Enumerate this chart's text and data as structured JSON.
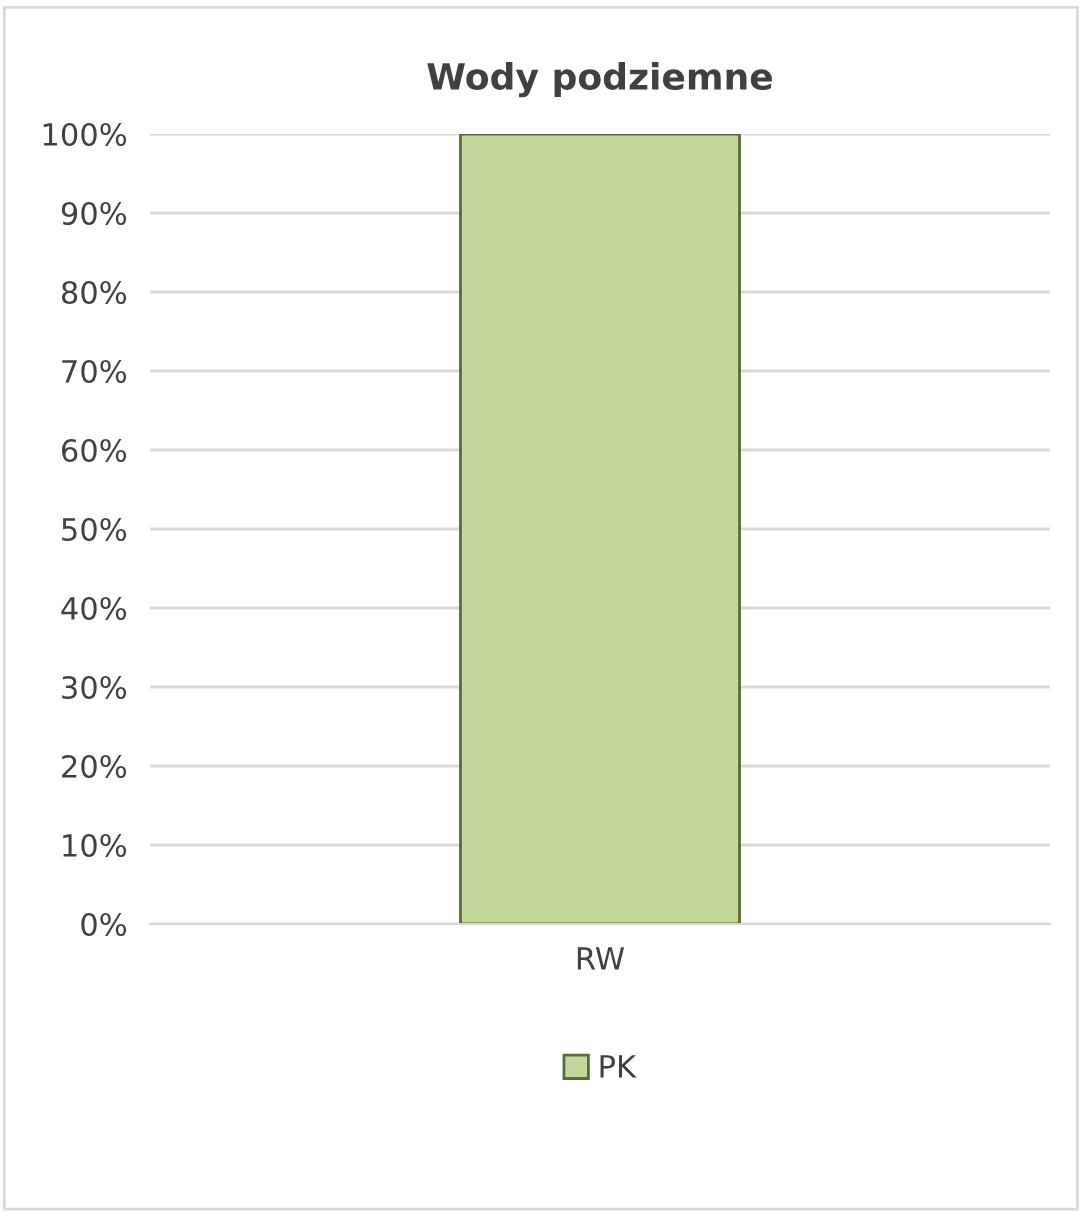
{
  "chart_data": {
    "type": "bar",
    "title": "Wody podziemne",
    "categories": [
      "RW"
    ],
    "series": [
      {
        "name": "PK",
        "color": "#c4d79b",
        "values": [
          100
        ]
      }
    ],
    "ylim": [
      0,
      100
    ],
    "yticks": [
      {
        "value": 0,
        "label": "0%"
      },
      {
        "value": 10,
        "label": "10%"
      },
      {
        "value": 20,
        "label": "20%"
      },
      {
        "value": 30,
        "label": "30%"
      },
      {
        "value": 40,
        "label": "40%"
      },
      {
        "value": 50,
        "label": "50%"
      },
      {
        "value": 60,
        "label": "60%"
      },
      {
        "value": 70,
        "label": "70%"
      },
      {
        "value": 80,
        "label": "80%"
      },
      {
        "value": 90,
        "label": "90%"
      },
      {
        "value": 100,
        "label": "100%"
      }
    ],
    "grid": "y",
    "legend": "bottom"
  }
}
